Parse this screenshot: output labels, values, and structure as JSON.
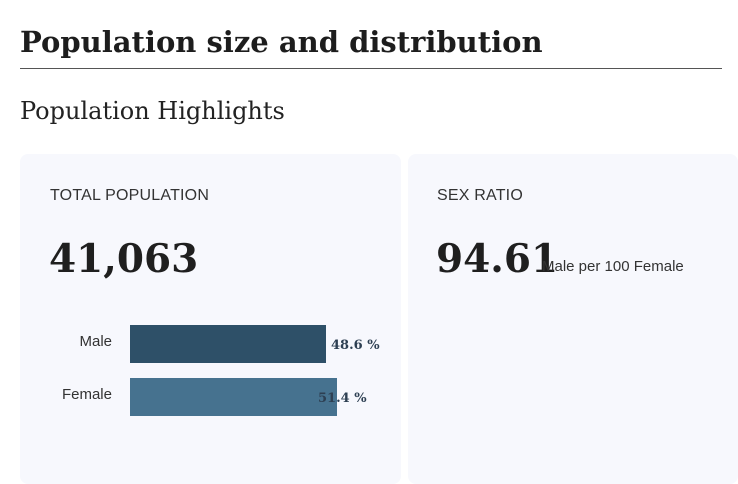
{
  "page": {
    "title": "Population size and distribution",
    "section_title": "Population Highlights"
  },
  "total_population": {
    "label": "TOTAL POPULATION",
    "value": "41,063",
    "bars": [
      {
        "label": "Male",
        "percent": 48.6,
        "value_text": "48.6 %",
        "color": "#2e5068"
      },
      {
        "label": "Female",
        "percent": 51.4,
        "value_text": "51.4 %",
        "color": "#46728f"
      }
    ]
  },
  "sex_ratio": {
    "label": "SEX RATIO",
    "value": "94.61",
    "unit": "Male per 100 Female"
  }
}
